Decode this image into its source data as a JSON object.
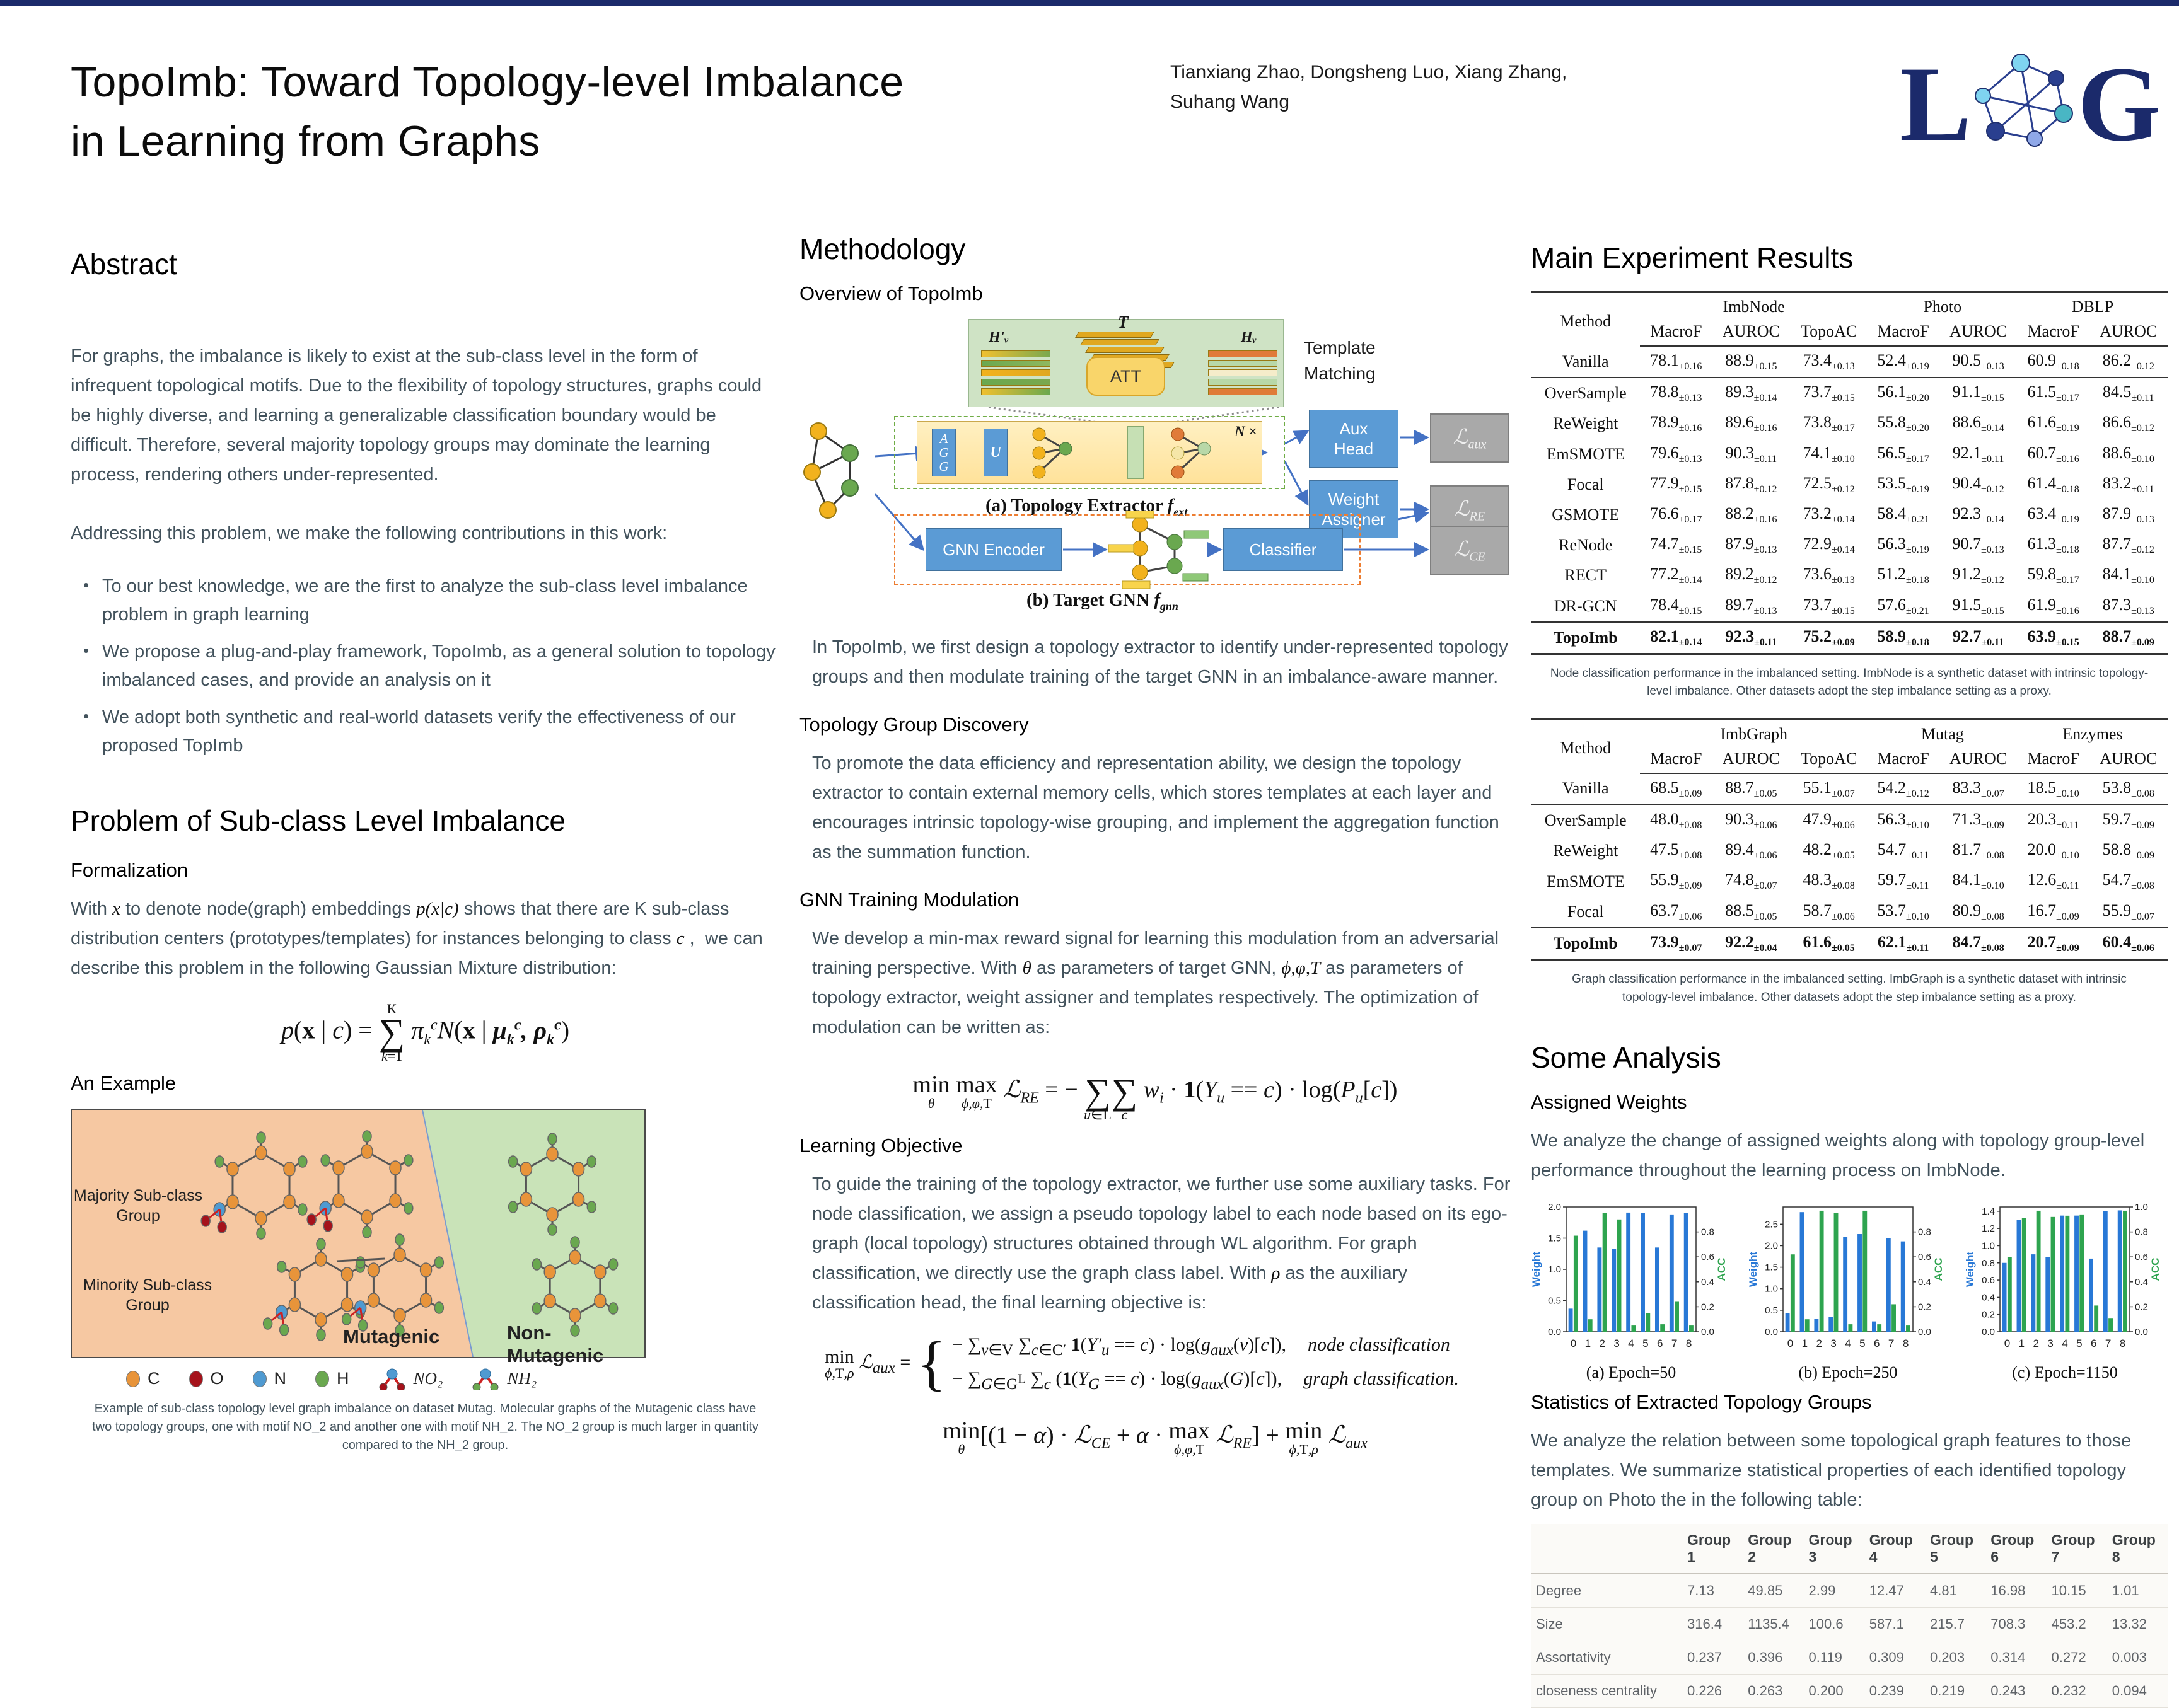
{
  "header": {
    "title_line1": "TopoImb: Toward Topology-level Imbalance",
    "title_line2": "in Learning from Graphs",
    "authors_line1": "Tianxiang Zhao, Dongsheng Luo, Xiang Zhang,",
    "authors_line2": "Suhang Wang",
    "logo_letter_l": "L",
    "logo_letter_g": "G"
  },
  "abstract": {
    "heading": "Abstract",
    "para1": "For graphs, the imbalance is likely to exist at the sub-class level in the form of infrequent topological motifs. Due to the flexibility of topology structures, graphs could be highly diverse, and learning a generalizable classification boundary would be difficult. Therefore, several majority topology groups may dominate the learning process, rendering others under-represented.",
    "para2": "Addressing this problem, we make the following contributions in this work:",
    "bullets": [
      "To our best knowledge, we are the first to analyze the sub-class level imbalance problem in graph learning",
      "We propose a plug-and-play framework, TopoImb, as a general solution to topology imbalanced cases, and provide an analysis on it",
      "We adopt both synthetic and real-world datasets verify the effectiveness of our proposed TopImb"
    ]
  },
  "problem": {
    "heading": "Problem of Sub-class Level Imbalance",
    "formalization_heading": "Formalization",
    "formalization_html": "With <i class=\"math\">x</i> to denote node(graph) embeddings <i class=\"math\">p(x|c)</i> shows that there are K sub-class distribution centers (prototypes/templates) for instances belonging to class <i class=\"math\">c</i> ,&nbsp; we can describe this problem in the following Gaussian Mixture distribution:",
    "gmm_formula_html": "<i>p</i>(<b>x</b> | <i>c</i>) = <span class=\"limstack\"><span>K</span><span class=\"s\">&#8721;</span><span><i>k</i>=1</span></span> <i>&#960;<sub>k</sub><sup>c</sup></i><i>N</i>(<b>x</b> | <b><i>&#956;<sub>k</sub><sup>c</sup>, &#961;<sub>k</sub><sup>c</sup></i></b>)",
    "example_heading": "An Example",
    "figure": {
      "majority_label": "Majority Sub-class Group",
      "minority_label": "Minority  Sub-class Group",
      "mutagenic_label": "Mutagenic",
      "nonmutagenic_label": "Non-Mutagenic",
      "legend": [
        {
          "label": "C",
          "color": "#e8943a"
        },
        {
          "label": "O",
          "color": "#a5121b"
        },
        {
          "label": "N",
          "color": "#4f9ad1"
        },
        {
          "label": "H",
          "color": "#6aa84f"
        }
      ],
      "motif_legend": [
        {
          "label": "NO₂",
          "end_color": "#a5121b"
        },
        {
          "label": "NH₂",
          "end_color": "#6aa84f"
        }
      ],
      "caption": "Example of sub-class topology level graph imbalance on dataset Mutag. Molecular graphs of the Mutagenic class have two topology groups, one with motif NO_2 and another one with motif NH_2. The NO_2 group is much larger in quantity compared to the NH_2 group."
    }
  },
  "methodology": {
    "heading": "Methodology",
    "overview_heading": "Overview of TopoImb",
    "diagram": {
      "t_label": "T",
      "hv_prime_label": "H'ᵥ",
      "hv_label": "Hᵥ",
      "att_label": "ATT",
      "template_matching_label": "Template Matching",
      "agg_label": "A\nG\nG",
      "u_label": "U",
      "n_times_label": "N ×",
      "extractor_caption_html": "(a) Topology Extractor <i>f<sub>ext</sub></i>",
      "aux_head_label": "Aux Head",
      "weight_assigner_label": "Weight Assigner",
      "gnn_encoder_label": "GNN Encoder",
      "classifier_label": "Classifier",
      "loss_aux_html": "ℒ<sub>aux</sub>",
      "loss_re_html": "ℒ<sub>RE</sub>",
      "loss_ce_html": "ℒ<sub>CE</sub>",
      "target_caption_html": "(b) Target GNN <i>f<sub>gnn</sub></i>"
    },
    "intro_text": "In TopoImb, we first design a topology extractor to identify under-represented topology groups and then modulate training of the target GNN in an imbalance-aware manner.",
    "tgd_heading": "Topology Group Discovery",
    "tgd_text": "To promote the data efficiency and representation ability, we design the topology extractor to contain external memory cells, which stores templates at each layer and encourages intrinsic topology-wise grouping, and implement the aggregation function as the summation function.",
    "gtm_heading": "GNN Training Modulation",
    "gtm_text_html": "We develop a min-max reward signal for learning this modulation from an adversarial training perspective. With <i class=\"math\">θ</i> as parameters of target GNN, <i class=\"math\">ϕ,φ,T</i> as parameters of topology extractor, weight assigner and templates respectively. The optimization of modulation can be written as:",
    "re_formula_html": "<span class=\"opstack\"><span>min</span><span class=\"u\"><i>θ</i></span></span> <span class=\"opstack\"><span>max</span><span class=\"u\"><i>ϕ,φ,</i>T</span></span> <i>ℒ<sub>RE</sub></i> = − <span class=\"limstack\"><span>&nbsp;</span><span class=\"s\">&#8721;</span><span><i>u</i>∈L</span></span><span class=\"limstack\"><span>&nbsp;</span><span class=\"s\">&#8721;</span><span><i>c</i></span></span> <i>w<sub>i</sub></i> · <b>1</b>(<i>Y<sub>u</sub></i> == <i>c</i>) · log(<i>P<sub>u</sub></i>[<i>c</i>])",
    "lo_heading": "Learning Objective",
    "lo_text_html": "To guide the training of the topology extractor, we further use some auxiliary tasks. For node classification, we assign a pseudo topology label to each node based on its ego-graph (local topology) structures obtained through WL algorithm. For graph classification, we directly use the graph class label. With <i class=\"math\">ρ</i> as the auxiliary classification head, the final learning objective is:",
    "aux_lhs_html": "<span class=\"opstack\"><span>min</span><span class=\"u\"><i>ϕ,</i>T<i>,ρ</i></span></span> <i>ℒ<sub>aux</sub></i> =",
    "aux_case1_html": "− ∑<sub><i>v</i>∈V</sub> ∑<sub><i>c</i>∈C′</sub> <b>1</b>(<i>Y′<sub>u</sub></i> == <i>c</i>) · log(<i>g<sub>aux</sub></i>(<i>v</i>)[<i>c</i>]),",
    "aux_case1_tag": "node classification",
    "aux_case2_html": "− ∑<sub><i>G</i>∈G<sup>L</sup></sub> ∑<sub><i>c</i></sub> (<b>1</b>(<i>Y<sub>G</sub></i> == <i>c</i>) · log(<i>g<sub>aux</sub></i>(<i>G</i>)[<i>c</i>]),",
    "aux_case2_tag": "graph classification.",
    "final_formula_html": "<span class=\"opstack\"><span>min</span><span class=\"u\"><i>θ</i></span></span>[(1 − <i>α</i>) · <i>ℒ<sub>CE</sub></i> + <i>α</i> · <span class=\"opstack\"><span>max</span><span class=\"u\"><i>ϕ,φ,</i>T</span></span> <i>ℒ<sub>RE</sub></i>] + <span class=\"opstack\"><span>min</span><span class=\"u\"><i>ϕ,</i>T<i>,ρ</i></span></span> <i>ℒ<sub>aux</sub></i>"
  },
  "results": {
    "heading": "Main Experiment Results",
    "table1": {
      "group_headers": [
        {
          "label": "Method",
          "colspan": 1
        },
        {
          "label": "ImbNode",
          "colspan": 3
        },
        {
          "label": "Photo",
          "colspan": 2
        },
        {
          "label": "DBLP",
          "colspan": 2
        }
      ],
      "sub_headers": [
        "MacroF",
        "AUROC",
        "TopoAC",
        "MacroF",
        "AUROC",
        "MacroF",
        "AUROC"
      ],
      "rows": [
        {
          "method": "Vanilla",
          "values": [
            "78.1±0.16",
            "88.9±0.15",
            "73.4±0.13",
            "52.4±0.19",
            "90.5±0.13",
            "60.9±0.18",
            "86.2±0.12"
          ]
        },
        {
          "method": "OverSample",
          "values": [
            "78.8±0.13",
            "89.3±0.14",
            "73.7±0.15",
            "56.1±0.20",
            "91.1±0.15",
            "61.5±0.17",
            "84.5±0.11"
          ]
        },
        {
          "method": "ReWeight",
          "values": [
            "78.9±0.16",
            "89.6±0.16",
            "73.8±0.17",
            "55.8±0.20",
            "88.6±0.14",
            "61.6±0.19",
            "86.6±0.12"
          ]
        },
        {
          "method": "EmSMOTE",
          "values": [
            "79.6±0.13",
            "90.3±0.11",
            "74.1±0.10",
            "56.5±0.17",
            "92.1±0.11",
            "60.7±0.16",
            "88.6±0.10"
          ]
        },
        {
          "method": "Focal",
          "values": [
            "77.9±0.15",
            "87.8±0.12",
            "72.5±0.12",
            "53.5±0.19",
            "90.4±0.12",
            "61.4±0.18",
            "83.2±0.11"
          ]
        },
        {
          "method": "GSMOTE",
          "values": [
            "76.6±0.17",
            "88.2±0.16",
            "73.2±0.14",
            "58.4±0.21",
            "92.3±0.14",
            "63.4±0.19",
            "87.9±0.13"
          ]
        },
        {
          "method": "ReNode",
          "values": [
            "74.7±0.15",
            "87.9±0.13",
            "72.9±0.14",
            "56.3±0.19",
            "90.7±0.13",
            "61.3±0.18",
            "87.7±0.12"
          ]
        },
        {
          "method": "RECT",
          "values": [
            "77.2±0.14",
            "89.2±0.12",
            "73.6±0.13",
            "51.2±0.18",
            "91.2±0.12",
            "59.8±0.17",
            "84.1±0.10"
          ]
        },
        {
          "method": "DR-GCN",
          "values": [
            "78.4±0.15",
            "89.7±0.13",
            "73.7±0.15",
            "57.6±0.21",
            "91.5±0.15",
            "61.9±0.16",
            "87.3±0.13"
          ]
        },
        {
          "method": "TopoImb",
          "values": [
            "82.1±0.14",
            "92.3±0.11",
            "75.2±0.09",
            "58.9±0.18",
            "92.7±0.11",
            "63.9±0.15",
            "88.7±0.09"
          ]
        }
      ]
    },
    "table1_caption": "Node classification performance in the imbalanced setting. ImbNode is a synthetic dataset with intrinsic topology-level imbalance. Other datasets adopt the step imbalance setting as a proxy.",
    "table2": {
      "group_headers": [
        {
          "label": "Method",
          "colspan": 1
        },
        {
          "label": "ImbGraph",
          "colspan": 3
        },
        {
          "label": "Mutag",
          "colspan": 2
        },
        {
          "label": "Enzymes",
          "colspan": 2
        }
      ],
      "sub_headers": [
        "MacroF",
        "AUROC",
        "TopoAC",
        "MacroF",
        "AUROC",
        "MacroF",
        "AUROC"
      ],
      "rows": [
        {
          "method": "Vanilla",
          "values": [
            "68.5±0.09",
            "88.7±0.05",
            "55.1±0.07",
            "54.2±0.12",
            "83.3±0.07",
            "18.5±0.10",
            "53.8±0.08"
          ]
        },
        {
          "method": "OverSample",
          "values": [
            "48.0±0.08",
            "90.3±0.06",
            "47.9±0.06",
            "56.3±0.10",
            "71.3±0.09",
            "20.3±0.11",
            "59.7±0.09"
          ]
        },
        {
          "method": "ReWeight",
          "values": [
            "47.5±0.08",
            "89.4±0.06",
            "48.2±0.05",
            "54.7±0.11",
            "81.7±0.08",
            "20.0±0.10",
            "58.8±0.09"
          ]
        },
        {
          "method": "EmSMOTE",
          "values": [
            "55.9±0.09",
            "74.8±0.07",
            "48.3±0.08",
            "59.7±0.11",
            "84.1±0.10",
            "12.6±0.11",
            "54.7±0.08"
          ]
        },
        {
          "method": "Focal",
          "values": [
            "63.7±0.06",
            "88.5±0.05",
            "58.7±0.06",
            "53.7±0.10",
            "80.9±0.08",
            "16.7±0.09",
            "55.9±0.07"
          ]
        },
        {
          "method": "TopoImb",
          "values": [
            "73.9±0.07",
            "92.2±0.04",
            "61.6±0.05",
            "62.1±0.11",
            "84.7±0.08",
            "20.7±0.09",
            "60.4±0.06"
          ]
        }
      ]
    },
    "table2_caption": "Graph classification performance in the imbalanced setting. ImbGraph is a synthetic dataset with intrinsic topology-level imbalance. Other datasets adopt the step imbalance setting as a proxy."
  },
  "analysis": {
    "heading": "Some Analysis",
    "aw_heading": "Assigned Weights",
    "aw_text": "We analyze the change of assigned weights along with topology group-level performance throughout the learning process on ImbNode.",
    "stats_heading": "Statistics of Extracted Topology Groups",
    "stats_text": "We analyze the relation between some topological graph features to those templates.  We summarize statistical properties of each identified topology group on Photo the in the following table:",
    "stats_table": {
      "columns": [
        "Group 1",
        "Group 2",
        "Group 3",
        "Group 4",
        "Group 5",
        "Group 6",
        "Group 7",
        "Group 8"
      ],
      "rows": [
        {
          "label": "Degree",
          "values": [
            "7.13",
            "49.85",
            "2.99",
            "12.47",
            "4.81",
            "16.98",
            "10.15",
            "1.01"
          ]
        },
        {
          "label": "Size",
          "values": [
            "316.4",
            "1135.4",
            "100.6",
            "587.1",
            "215.7",
            "708.3",
            "453.2",
            "13.32"
          ]
        },
        {
          "label": "Assortativity",
          "values": [
            "0.237",
            "0.396",
            "0.119",
            "0.309",
            "0.203",
            "0.314",
            "0.272",
            "0.003"
          ]
        },
        {
          "label": "closeness centrality",
          "values": [
            "0.226",
            "0.263",
            "0.200",
            "0.239",
            "0.219",
            "0.243",
            "0.232",
            "0.094"
          ]
        }
      ]
    }
  },
  "chart_data": [
    {
      "type": "bar",
      "title": "(a) Epoch=50",
      "x": [
        "0",
        "1",
        "2",
        "3",
        "4",
        "5",
        "6",
        "7",
        "8"
      ],
      "left_label": "Weight",
      "right_label": "ACC",
      "left_ticks": [
        0.0,
        0.5,
        1.0,
        1.5,
        2.0
      ],
      "left_max": 2.0,
      "right_ticks": [
        0.0,
        0.2,
        0.4,
        0.6,
        0.8
      ],
      "right_max": 1.0,
      "series": [
        {
          "name": "Weight",
          "axis": "left",
          "color": "#2878d6",
          "values": [
            0.37,
            1.62,
            1.35,
            1.33,
            1.91,
            1.9,
            1.35,
            1.88,
            1.9
          ]
        },
        {
          "name": "ACC",
          "axis": "right",
          "color": "#2ea44f",
          "values": [
            0.77,
            0.1,
            0.95,
            0.9,
            0.05,
            0.15,
            0.06,
            0.24,
            0.05
          ]
        }
      ]
    },
    {
      "type": "bar",
      "title": "(b) Epoch=250",
      "x": [
        "0",
        "1",
        "2",
        "3",
        "4",
        "5",
        "6",
        "7",
        "8"
      ],
      "left_label": "Weight",
      "right_label": "ACC",
      "left_ticks": [
        0.0,
        0.5,
        1.0,
        1.5,
        2.0,
        2.5
      ],
      "left_max": 2.9,
      "right_ticks": [
        0.0,
        0.2,
        0.4,
        0.6,
        0.8
      ],
      "right_max": 1.0,
      "series": [
        {
          "name": "Weight",
          "axis": "left",
          "color": "#2878d6",
          "values": [
            0.43,
            2.78,
            0.3,
            0.35,
            2.2,
            2.27,
            0.24,
            2.18,
            2.1
          ]
        },
        {
          "name": "ACC",
          "axis": "right",
          "color": "#2ea44f",
          "values": [
            0.62,
            0.1,
            0.97,
            0.95,
            0.06,
            0.97,
            0.06,
            0.22,
            0.05
          ]
        }
      ]
    },
    {
      "type": "bar",
      "title": "(c) Epoch=1150",
      "x": [
        "0",
        "1",
        "2",
        "3",
        "4",
        "5",
        "6",
        "7",
        "8"
      ],
      "left_label": "Weight",
      "right_label": "ACC",
      "left_ticks": [
        0.0,
        0.2,
        0.4,
        0.6,
        0.8,
        1.0,
        1.2,
        1.4
      ],
      "left_max": 1.45,
      "right_ticks": [
        0.0,
        0.2,
        0.4,
        0.6,
        0.8,
        1.0
      ],
      "right_max": 1.0,
      "series": [
        {
          "name": "Weight",
          "axis": "left",
          "color": "#2878d6",
          "values": [
            0.8,
            1.3,
            0.9,
            0.87,
            1.35,
            1.35,
            0.85,
            1.4,
            1.41
          ]
        },
        {
          "name": "ACC",
          "axis": "right",
          "color": "#2ea44f",
          "values": [
            0.6,
            0.91,
            0.97,
            0.92,
            0.93,
            0.94,
            0.21,
            0.11,
            0.97
          ]
        }
      ]
    }
  ],
  "colors": {
    "weight_bar": "#2878d6",
    "acc_bar": "#2ea44f",
    "mutagenic_bg": "#f6c8a2",
    "nonmutagenic_bg": "#c9e3b8",
    "logo_navy": "#1b2a6b"
  }
}
